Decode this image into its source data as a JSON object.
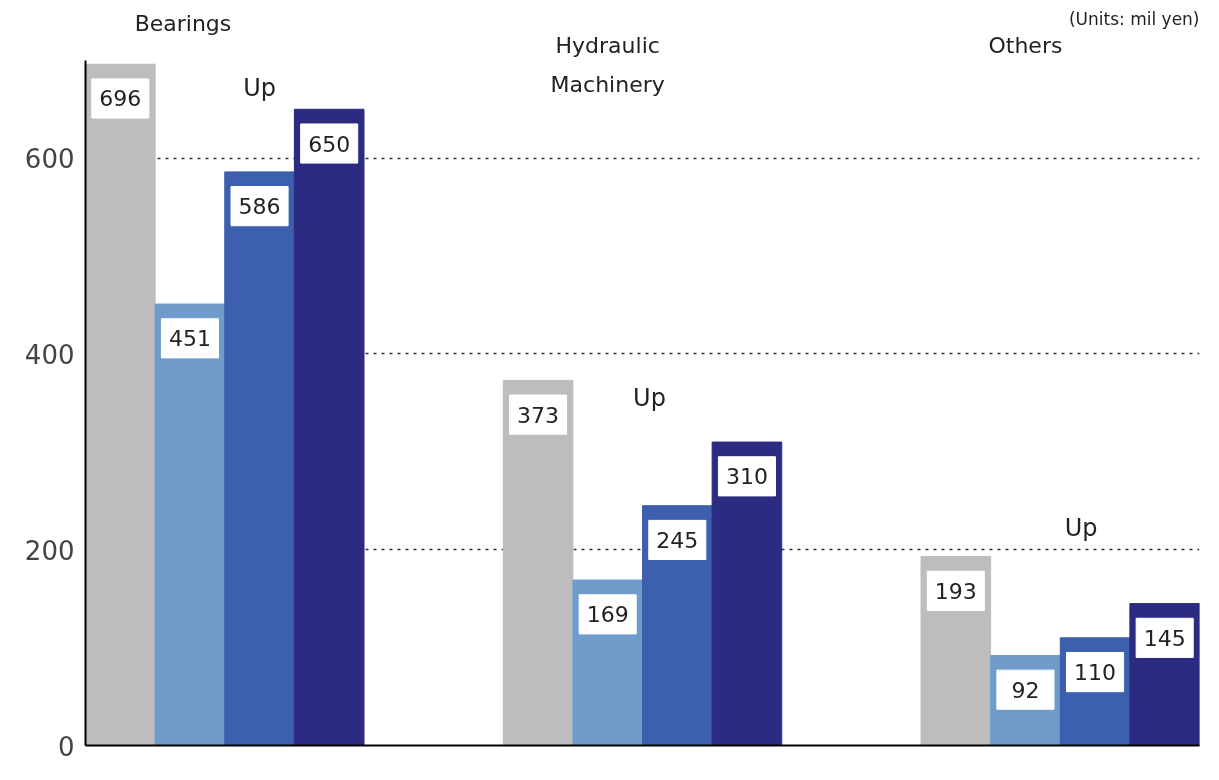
{
  "chart_data": {
    "type": "bar",
    "categories": [
      null,
      null,
      null,
      null,
      null,
      null,
      null,
      null,
      null,
      null,
      null,
      null,
      null,
      null,
      null,
      null
    ],
    "values": [
      696,
      451,
      586,
      650,
      null,
      null,
      373,
      169,
      245,
      310,
      null,
      null,
      193,
      92,
      110,
      145
    ],
    "colors": [
      "#bdbdbd",
      "#6f9ccb",
      "#3c5fae",
      "#2b2b82",
      null,
      null,
      "#bdbdbd",
      "#6f9ccb",
      "#3c5fae",
      "#2b2b82",
      null,
      null,
      "#bdbdbd",
      "#6f9ccb",
      "#3c5fae",
      "#2b2b82"
    ],
    "ylim": [
      0,
      700
    ],
    "yticks": [
      0,
      200,
      400,
      600
    ],
    "grid": "y",
    "data_labels": true,
    "annotations": [
      "Bearings",
      "Hydraulic\nMachinery",
      "Others",
      "Up",
      "Up",
      "Up",
      "(Units: mil yen)"
    ]
  }
}
